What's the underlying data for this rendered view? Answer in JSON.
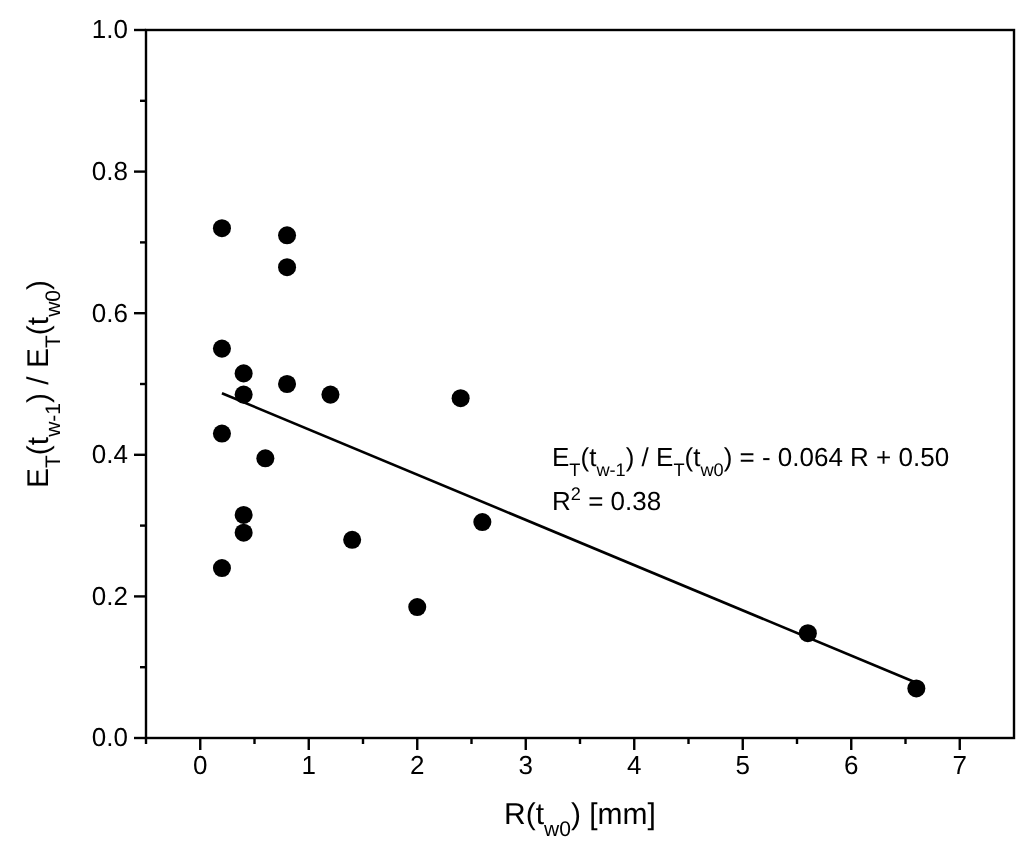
{
  "chart_data": {
    "type": "scatter",
    "xlabel": "R(t$_{w0}$) [mm]",
    "ylabel": "E$_{T}$(t$_{w-1}$) / E$_{T}$(t$_{w0}$)",
    "xlim": [
      -0.5,
      7.5
    ],
    "ylim": [
      0,
      1
    ],
    "xticks": [
      {
        "value": -0.5,
        "label": null
      },
      0,
      {
        "value": 0.5,
        "label": null
      },
      1,
      {
        "value": 1.5,
        "label": null
      },
      2,
      {
        "value": 2.5,
        "label": null
      },
      3,
      {
        "value": 3.5,
        "label": null
      },
      4,
      {
        "value": 4.5,
        "label": null
      },
      5,
      {
        "value": 5.5,
        "label": null
      },
      6,
      {
        "value": 6.5,
        "label": null
      },
      7
    ],
    "yticks": [
      {
        "value": 0,
        "label": "0.0"
      },
      {
        "value": 0.1,
        "label": null
      },
      0.2,
      {
        "value": 0.3,
        "label": null
      },
      0.4,
      {
        "value": 0.5,
        "label": null
      },
      0.6,
      {
        "value": 0.7,
        "label": null
      },
      0.8,
      {
        "value": 0.9,
        "label": null
      },
      {
        "value": 1,
        "label": "1.0"
      }
    ],
    "grid": false,
    "series": [
      {
        "marker": "circle",
        "color": "#000000",
        "x": [
          0.2,
          0.2,
          0.2,
          0.2,
          0.4,
          0.4,
          0.4,
          0.4,
          0.6,
          0.8,
          0.8,
          0.8,
          1.2,
          1.4,
          2.0,
          2.4,
          2.6,
          5.6,
          6.6
        ],
        "values": [
          0.72,
          0.55,
          0.43,
          0.24,
          0.515,
          0.485,
          0.315,
          0.29,
          0.395,
          0.71,
          0.665,
          0.5,
          0.485,
          0.28,
          0.185,
          0.48,
          0.305,
          0.148,
          0.07
        ]
      },
      {
        "type": "line",
        "color": "#000000",
        "x": [
          0.2,
          6.6
        ],
        "values": [
          0.487,
          0.078
        ]
      }
    ],
    "annotations": [
      "E$_{T}$(t$_{w-1}$) / E$_{T}$(t$_{w0}$) = - 0.064 R + 0.50",
      "R$^{2}$ = 0.38"
    ]
  }
}
